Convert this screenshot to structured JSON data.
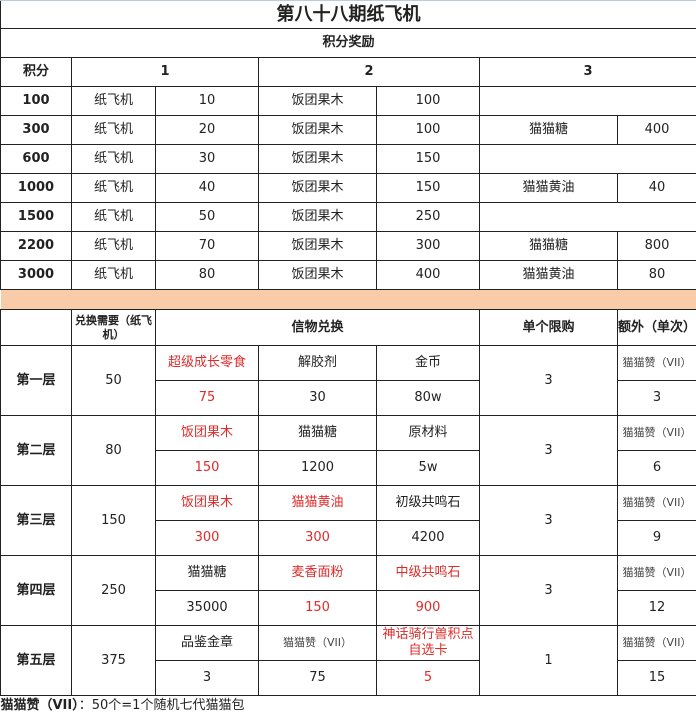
{
  "title": "第八十八期纸飞机",
  "reward": {
    "header": "积分奖励",
    "col_points": "积分",
    "col1": "1",
    "col2": "2",
    "col3": "3",
    "rows": [
      {
        "points": "100",
        "i1": "纸飞机",
        "q1": "10",
        "i2": "饭团果木",
        "q2": "100",
        "i3": "",
        "q3": ""
      },
      {
        "points": "300",
        "i1": "纸飞机",
        "q1": "20",
        "i2": "饭团果木",
        "q2": "100",
        "i3": "猫猫糖",
        "q3": "400"
      },
      {
        "points": "600",
        "i1": "纸飞机",
        "q1": "30",
        "i2": "饭团果木",
        "q2": "150",
        "i3": "",
        "q3": ""
      },
      {
        "points": "1000",
        "i1": "纸飞机",
        "q1": "40",
        "i2": "饭团果木",
        "q2": "150",
        "i3": "猫猫黄油",
        "q3": "40"
      },
      {
        "points": "1500",
        "i1": "纸飞机",
        "q1": "50",
        "i2": "饭团果木",
        "q2": "250",
        "i3": "",
        "q3": ""
      },
      {
        "points": "2200",
        "i1": "纸飞机",
        "q1": "70",
        "i2": "饭团果木",
        "q2": "300",
        "i3": "猫猫糖",
        "q3": "800"
      },
      {
        "points": "3000",
        "i1": "纸飞机",
        "q1": "80",
        "i2": "饭团果木",
        "q2": "400",
        "i3": "猫猫黄油",
        "q3": "80"
      }
    ]
  },
  "exchange": {
    "col_cost": "兑换需要（纸飞机）",
    "col_items": "信物兑换",
    "col_limit": "单个限购",
    "col_extra": "额外（单次）",
    "layers": [
      {
        "name": "第一层",
        "cost": "50",
        "items": [
          {
            "n": "超级成长零食",
            "q": "75",
            "red": true
          },
          {
            "n": "解胶剂",
            "q": "30"
          },
          {
            "n": "金币",
            "q": "80w"
          }
        ],
        "limit": "3",
        "extra": "猫猫赞（VII）",
        "extra_q": "3"
      },
      {
        "name": "第二层",
        "cost": "80",
        "items": [
          {
            "n": "饭团果木",
            "q": "150",
            "red": true
          },
          {
            "n": "猫猫糖",
            "q": "1200"
          },
          {
            "n": "原材料",
            "q": "5w"
          }
        ],
        "limit": "3",
        "extra": "猫猫赞（VII）",
        "extra_q": "6"
      },
      {
        "name": "第三层",
        "cost": "150",
        "items": [
          {
            "n": "饭团果木",
            "q": "300",
            "red": true
          },
          {
            "n": "猫猫黄油",
            "q": "300",
            "red": true
          },
          {
            "n": "初级共鸣石",
            "q": "4200"
          }
        ],
        "limit": "3",
        "extra": "猫猫赞（VII）",
        "extra_q": "9"
      },
      {
        "name": "第四层",
        "cost": "250",
        "items": [
          {
            "n": "猫猫糖",
            "q": "35000"
          },
          {
            "n": "麦香面粉",
            "q": "150",
            "red": true
          },
          {
            "n": "中级共鸣石",
            "q": "900",
            "red": true
          }
        ],
        "limit": "3",
        "extra": "猫猫赞（VII）",
        "extra_q": "12"
      },
      {
        "name": "第五层",
        "cost": "375",
        "items": [
          {
            "n": "品鉴金章",
            "q": "3"
          },
          {
            "n": "猫猫赞（VII）",
            "q": "75",
            "small": true
          },
          {
            "n": "神话骑行兽积点自选卡",
            "q": "5",
            "red": true
          }
        ],
        "limit": "1",
        "extra": "猫猫赞（VII）",
        "extra_q": "15"
      }
    ]
  },
  "footnote_bold": "猫猫赞（VII）",
  "footnote": "：50个=1个随机七代猫猫包",
  "colors": {
    "red": "#e02b2b",
    "band": "#f8cba9"
  }
}
